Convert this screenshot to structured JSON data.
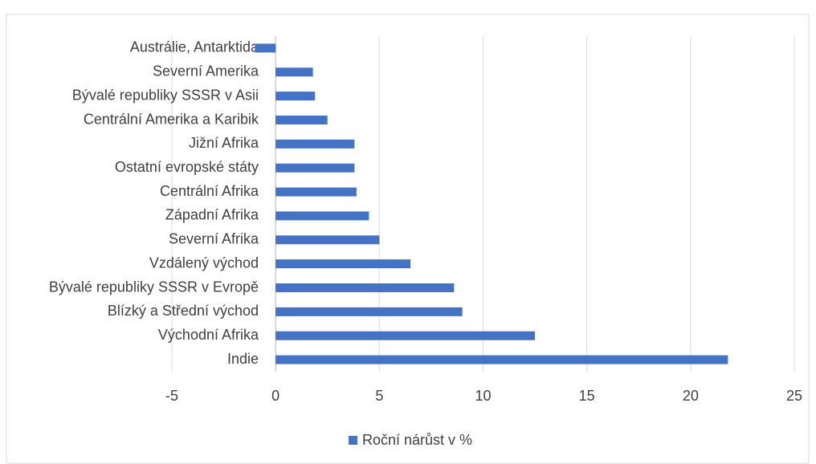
{
  "chart_data": {
    "type": "bar",
    "orientation": "horizontal",
    "categories": [
      "Austrálie, Antarktida",
      "Severní Amerika",
      "Bývalé republiky SSSR v Asii",
      "Centrální Amerika a Karibik",
      "Jižní Afrika ",
      "Ostatní evropské státy ",
      "Centrální Afrika",
      "Západní Afrika",
      "Severní Afrika",
      "Vzdálený východ",
      "Bývalé republiky SSSR v Evropě",
      "Blízký a Střední východ",
      "Východní Afrika",
      "Indie"
    ],
    "series": [
      {
        "name": "Roční nárůst v %",
        "color": "#4472c4",
        "values": [
          -1,
          1.8,
          1.9,
          2.5,
          3.8,
          3.8,
          3.9,
          4.5,
          5.0,
          6.5,
          8.6,
          9.0,
          12.5,
          21.8
        ]
      }
    ],
    "xlim": [
      -5,
      25
    ],
    "xticks": [
      -5,
      0,
      5,
      10,
      15,
      20,
      25
    ],
    "grid": true,
    "legend": "bottom"
  }
}
